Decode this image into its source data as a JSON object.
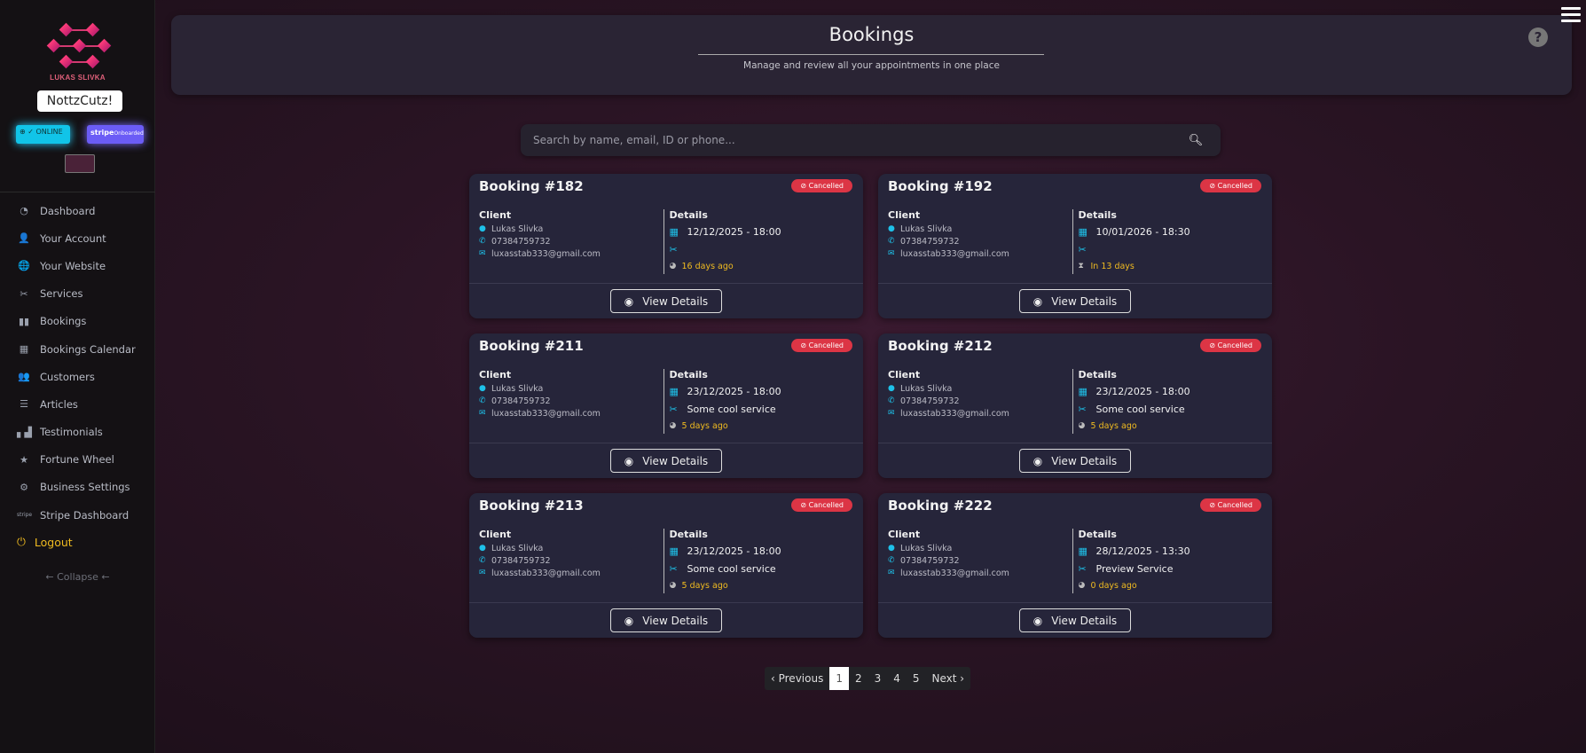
{
  "sidebar": {
    "brand": "LUKAS SLIVKA",
    "business_name": "NottzCutz!",
    "online_badge": "⊕ ✓ ONLINE",
    "stripe_badge": {
      "logo": "stripe",
      "status": "Onboarded"
    },
    "items": [
      {
        "label": "Dashboard",
        "icon": "dashboard-icon",
        "glyph": "◔"
      },
      {
        "label": "Your Account",
        "icon": "user-icon",
        "glyph": "👤"
      },
      {
        "label": "Your Website",
        "icon": "globe-icon",
        "glyph": "🌐"
      },
      {
        "label": "Services",
        "icon": "scissors-icon",
        "glyph": "✂"
      },
      {
        "label": "Bookings",
        "icon": "book-icon",
        "glyph": "▮▮"
      },
      {
        "label": "Bookings Calendar",
        "icon": "calendar-icon",
        "glyph": "▦"
      },
      {
        "label": "Customers",
        "icon": "users-icon",
        "glyph": "👥"
      },
      {
        "label": "Articles",
        "icon": "list-icon",
        "glyph": "☰"
      },
      {
        "label": "Testimonials",
        "icon": "podium-icon",
        "glyph": "▖▟"
      },
      {
        "label": "Fortune Wheel",
        "icon": "star-icon",
        "glyph": "★"
      },
      {
        "label": "Business Settings",
        "icon": "cogs-icon",
        "glyph": "⚙"
      },
      {
        "label": "Stripe Dashboard",
        "icon": "stripe-icon",
        "glyph": "stripe"
      }
    ],
    "logout": "Logout",
    "collapse": "← Collapse ←"
  },
  "header": {
    "title": "Bookings",
    "subtitle": "Manage and review all your appointments in one place",
    "help": "?"
  },
  "search": {
    "placeholder": "Search by name, email, ID or phone...",
    "value": ""
  },
  "colors": {
    "accent": "#1ec0e8",
    "cancelled": "#dc3545",
    "time": "#f0bb20",
    "card": "#26253a"
  },
  "bookings": [
    {
      "title": "Booking #182",
      "status": "Cancelled",
      "client_label": "Client",
      "name": "Lukas Slivka",
      "phone": "07384759732",
      "email": "luxasstab333@gmail.com",
      "details_label": "Details",
      "datetime": "12/12/2025 - 18:00",
      "service": "",
      "relative": "16 days ago",
      "relative_icon": "clock",
      "button": "View Details"
    },
    {
      "title": "Booking #192",
      "status": "Cancelled",
      "client_label": "Client",
      "name": "Lukas Slivka",
      "phone": "07384759732",
      "email": "luxasstab333@gmail.com",
      "details_label": "Details",
      "datetime": "10/01/2026 - 18:30",
      "service": "",
      "relative": "In 13 days",
      "relative_icon": "hourglass",
      "button": "View Details"
    },
    {
      "title": "Booking #211",
      "status": "Cancelled",
      "client_label": "Client",
      "name": "Lukas Slivka",
      "phone": "07384759732",
      "email": "luxasstab333@gmail.com",
      "details_label": "Details",
      "datetime": "23/12/2025 - 18:00",
      "service": "Some cool service",
      "relative": "5 days ago",
      "relative_icon": "clock",
      "button": "View Details"
    },
    {
      "title": "Booking #212",
      "status": "Cancelled",
      "client_label": "Client",
      "name": "Lukas Slivka",
      "phone": "07384759732",
      "email": "luxasstab333@gmail.com",
      "details_label": "Details",
      "datetime": "23/12/2025 - 18:00",
      "service": "Some cool service",
      "relative": "5 days ago",
      "relative_icon": "clock",
      "button": "View Details"
    },
    {
      "title": "Booking #213",
      "status": "Cancelled",
      "client_label": "Client",
      "name": "Lukas Slivka",
      "phone": "07384759732",
      "email": "luxasstab333@gmail.com",
      "details_label": "Details",
      "datetime": "23/12/2025 - 18:00",
      "service": "Some cool service",
      "relative": "5 days ago",
      "relative_icon": "clock",
      "button": "View Details"
    },
    {
      "title": "Booking #222",
      "status": "Cancelled",
      "client_label": "Client",
      "name": "Lukas Slivka",
      "phone": "07384759732",
      "email": "luxasstab333@gmail.com",
      "details_label": "Details",
      "datetime": "28/12/2025 - 13:30",
      "service": "Preview Service",
      "relative": "0 days ago",
      "relative_icon": "clock",
      "button": "View Details"
    }
  ],
  "pagination": {
    "previous": "‹ Previous",
    "pages": [
      "1",
      "2",
      "3",
      "4",
      "5"
    ],
    "current": "1",
    "next": "Next ›"
  }
}
